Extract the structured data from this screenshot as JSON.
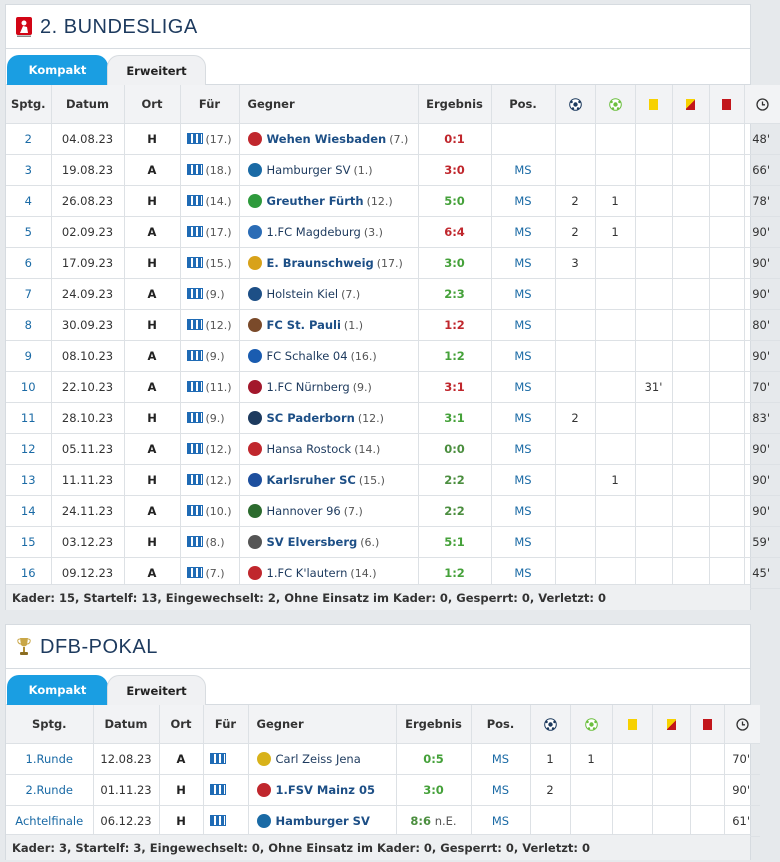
{
  "bundesliga": {
    "title": "2. BUNDESLIGA",
    "tabs": [
      "Kompakt",
      "Erweitert"
    ],
    "headers": [
      "Sptg.",
      "Datum",
      "Ort",
      "Für",
      "Gegner",
      "Ergebnis",
      "Pos."
    ],
    "header_icons": [
      "goal-icon",
      "assist-icon",
      "yellow-card-icon",
      "yellow-red-card-icon",
      "red-card-icon",
      "clock-icon"
    ],
    "rows": [
      {
        "sptg": "2",
        "datum": "04.08.23",
        "ort": "H",
        "fuer_rank": "(17.)",
        "gegner": "Wehen Wiesbaden",
        "gegner_rank": "(7.)",
        "home": true,
        "ergebnis": "0:1",
        "result": "loss",
        "pos": "",
        "goals": "",
        "assists": "",
        "yellow": "",
        "yellowred": "",
        "red": "",
        "minutes": "48'",
        "crest": "#c0272d"
      },
      {
        "sptg": "3",
        "datum": "19.08.23",
        "ort": "A",
        "fuer_rank": "(18.)",
        "gegner": "Hamburger SV",
        "gegner_rank": "(1.)",
        "home": false,
        "ergebnis": "3:0",
        "result": "loss",
        "pos": "MS",
        "goals": "",
        "assists": "",
        "yellow": "",
        "yellowred": "",
        "red": "",
        "minutes": "66'",
        "crest": "#1a6aa5"
      },
      {
        "sptg": "4",
        "datum": "26.08.23",
        "ort": "H",
        "fuer_rank": "(14.)",
        "gegner": "Greuther Fürth",
        "gegner_rank": "(12.)",
        "home": true,
        "ergebnis": "5:0",
        "result": "win",
        "pos": "MS",
        "goals": "2",
        "assists": "1",
        "yellow": "",
        "yellowred": "",
        "red": "",
        "minutes": "78'",
        "crest": "#2e9a3c"
      },
      {
        "sptg": "5",
        "datum": "02.09.23",
        "ort": "A",
        "fuer_rank": "(17.)",
        "gegner": "1.FC Magdeburg",
        "gegner_rank": "(3.)",
        "home": false,
        "ergebnis": "6:4",
        "result": "loss",
        "pos": "MS",
        "goals": "2",
        "assists": "1",
        "yellow": "",
        "yellowred": "",
        "red": "",
        "minutes": "90'",
        "crest": "#2b6cb5"
      },
      {
        "sptg": "6",
        "datum": "17.09.23",
        "ort": "H",
        "fuer_rank": "(15.)",
        "gegner": "E. Braunschweig",
        "gegner_rank": "(17.)",
        "home": true,
        "ergebnis": "3:0",
        "result": "win",
        "pos": "MS",
        "goals": "3",
        "assists": "",
        "yellow": "",
        "yellowred": "",
        "red": "",
        "minutes": "90'",
        "crest": "#d8a21a"
      },
      {
        "sptg": "7",
        "datum": "24.09.23",
        "ort": "A",
        "fuer_rank": "(9.)",
        "gegner": "Holstein Kiel",
        "gegner_rank": "(7.)",
        "home": false,
        "ergebnis": "2:3",
        "result": "win",
        "pos": "MS",
        "goals": "",
        "assists": "",
        "yellow": "",
        "yellowred": "",
        "red": "",
        "minutes": "90'",
        "crest": "#1d4f86"
      },
      {
        "sptg": "8",
        "datum": "30.09.23",
        "ort": "H",
        "fuer_rank": "(12.)",
        "gegner": "FC St. Pauli",
        "gegner_rank": "(1.)",
        "home": true,
        "ergebnis": "1:2",
        "result": "loss",
        "pos": "MS",
        "goals": "",
        "assists": "",
        "yellow": "",
        "yellowred": "",
        "red": "",
        "minutes": "80'",
        "crest": "#7a4a2a"
      },
      {
        "sptg": "9",
        "datum": "08.10.23",
        "ort": "A",
        "fuer_rank": "(9.)",
        "gegner": "FC Schalke 04",
        "gegner_rank": "(16.)",
        "home": false,
        "ergebnis": "1:2",
        "result": "win",
        "pos": "MS",
        "goals": "",
        "assists": "",
        "yellow": "",
        "yellowred": "",
        "red": "",
        "minutes": "90'",
        "crest": "#1a5cb0"
      },
      {
        "sptg": "10",
        "datum": "22.10.23",
        "ort": "A",
        "fuer_rank": "(11.)",
        "gegner": "1.FC Nürnberg",
        "gegner_rank": "(9.)",
        "home": false,
        "ergebnis": "3:1",
        "result": "loss",
        "pos": "MS",
        "goals": "",
        "assists": "",
        "yellow": "31'",
        "yellowred": "",
        "red": "",
        "minutes": "70'",
        "crest": "#a3182c"
      },
      {
        "sptg": "11",
        "datum": "28.10.23",
        "ort": "H",
        "fuer_rank": "(9.)",
        "gegner": "SC Paderborn",
        "gegner_rank": "(12.)",
        "home": true,
        "ergebnis": "3:1",
        "result": "win",
        "pos": "MS",
        "goals": "2",
        "assists": "",
        "yellow": "",
        "yellowred": "",
        "red": "",
        "minutes": "83'",
        "crest": "#1d3a5e"
      },
      {
        "sptg": "12",
        "datum": "05.11.23",
        "ort": "A",
        "fuer_rank": "(12.)",
        "gegner": "Hansa Rostock",
        "gegner_rank": "(14.)",
        "home": false,
        "ergebnis": "0:0",
        "result": "draw",
        "pos": "MS",
        "goals": "",
        "assists": "",
        "yellow": "",
        "yellowred": "",
        "red": "",
        "minutes": "90'",
        "crest": "#c0272d"
      },
      {
        "sptg": "13",
        "datum": "11.11.23",
        "ort": "H",
        "fuer_rank": "(12.)",
        "gegner": "Karlsruher SC",
        "gegner_rank": "(15.)",
        "home": true,
        "ergebnis": "2:2",
        "result": "draw",
        "pos": "MS",
        "goals": "",
        "assists": "1",
        "yellow": "",
        "yellowred": "",
        "red": "",
        "minutes": "90'",
        "crest": "#1d4f9e"
      },
      {
        "sptg": "14",
        "datum": "24.11.23",
        "ort": "A",
        "fuer_rank": "(10.)",
        "gegner": "Hannover 96",
        "gegner_rank": "(7.)",
        "home": false,
        "ergebnis": "2:2",
        "result": "draw",
        "pos": "MS",
        "goals": "",
        "assists": "",
        "yellow": "",
        "yellowred": "",
        "red": "",
        "minutes": "90'",
        "crest": "#2c6b2e"
      },
      {
        "sptg": "15",
        "datum": "03.12.23",
        "ort": "H",
        "fuer_rank": "(8.)",
        "gegner": "SV Elversberg",
        "gegner_rank": "(6.)",
        "home": true,
        "ergebnis": "5:1",
        "result": "win",
        "pos": "MS",
        "goals": "",
        "assists": "",
        "yellow": "",
        "yellowred": "",
        "red": "",
        "minutes": "59'",
        "crest": "#555555"
      },
      {
        "sptg": "16",
        "datum": "09.12.23",
        "ort": "A",
        "fuer_rank": "(7.)",
        "gegner": "1.FC K'lautern",
        "gegner_rank": "(14.)",
        "home": false,
        "ergebnis": "1:2",
        "result": "win",
        "pos": "MS",
        "goals": "",
        "assists": "",
        "yellow": "",
        "yellowred": "",
        "red": "",
        "minutes": "45'",
        "crest": "#c0272d"
      }
    ],
    "footer": "Kader: 15, Startelf: 13, Eingewechselt: 2, Ohne Einsatz im Kader: 0, Gesperrt: 0, Verletzt: 0"
  },
  "pokal": {
    "title": "DFB-POKAL",
    "tabs": [
      "Kompakt",
      "Erweitert"
    ],
    "headers": [
      "Sptg.",
      "Datum",
      "Ort",
      "Für",
      "Gegner",
      "Ergebnis",
      "Pos."
    ],
    "rows": [
      {
        "sptg": "1.Runde",
        "datum": "12.08.23",
        "ort": "A",
        "gegner": "Carl Zeiss Jena",
        "home": false,
        "ergebnis": "0:5",
        "suffix": "",
        "result": "win",
        "pos": "MS",
        "goals": "1",
        "assists": "1",
        "yellow": "",
        "yellowred": "",
        "red": "",
        "minutes": "70'",
        "crest": "#d8b21a"
      },
      {
        "sptg": "2.Runde",
        "datum": "01.11.23",
        "ort": "H",
        "gegner": "1.FSV Mainz 05",
        "home": true,
        "ergebnis": "3:0",
        "suffix": "",
        "result": "win",
        "pos": "MS",
        "goals": "2",
        "assists": "",
        "yellow": "",
        "yellowred": "",
        "red": "",
        "minutes": "90'",
        "crest": "#c0272d"
      },
      {
        "sptg": "Achtelfinale",
        "datum": "06.12.23",
        "ort": "H",
        "gegner": "Hamburger SV",
        "home": true,
        "ergebnis": "8:6",
        "suffix": "n.E.",
        "result": "draw",
        "pos": "MS",
        "goals": "",
        "assists": "",
        "yellow": "",
        "yellowred": "",
        "red": "",
        "minutes": "61'",
        "crest": "#1a6aa5"
      }
    ],
    "footer": "Kader: 3, Startelf: 3, Eingewechselt: 0, Ohne Einsatz im Kader: 0, Gesperrt: 0, Verletzt: 0"
  },
  "colors": {
    "accent": "#1a9ee2",
    "win": "#45a13a",
    "loss": "#c0272d",
    "draw": "#4b8e3f"
  }
}
